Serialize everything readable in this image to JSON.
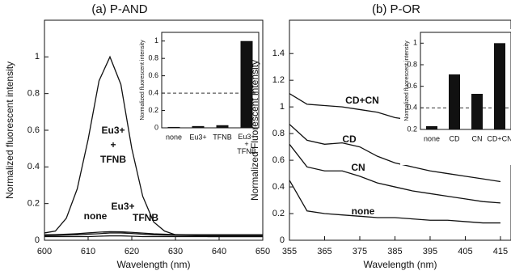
{
  "chart_data": [
    {
      "type": "line",
      "title": "(a) P-AND",
      "x_label": "Wavelength (nm)",
      "y_label": "Normalized fluorescent intensity",
      "x": [
        600,
        602.5,
        605,
        607.5,
        610,
        612.5,
        615,
        617.5,
        620,
        622.5,
        625,
        627.5,
        630,
        632.5,
        635,
        637.5,
        640,
        642.5,
        645,
        647.5,
        650
      ],
      "series": [
        {
          "name": "Eu3+ + TFNB",
          "color": "#111111",
          "values": [
            0.04,
            0.05,
            0.12,
            0.28,
            0.55,
            0.87,
            1.0,
            0.85,
            0.5,
            0.24,
            0.1,
            0.05,
            0.03,
            0.03,
            0.025,
            0.02,
            0.02,
            0.02,
            0.02,
            0.02,
            0.02
          ]
        },
        {
          "name": "none",
          "color": "#111111",
          "values": [
            0.02,
            0.02,
            0.02,
            0.02,
            0.02,
            0.022,
            0.024,
            0.024,
            0.022,
            0.02,
            0.02,
            0.02,
            0.02,
            0.02,
            0.02,
            0.02,
            0.02,
            0.02,
            0.02,
            0.02,
            0.02
          ]
        },
        {
          "name": "Eu3+",
          "color": "#111111",
          "values": [
            0.025,
            0.026,
            0.028,
            0.03,
            0.033,
            0.036,
            0.04,
            0.04,
            0.037,
            0.033,
            0.03,
            0.028,
            0.027,
            0.026,
            0.025,
            0.025,
            0.025,
            0.025,
            0.025,
            0.025,
            0.025
          ]
        },
        {
          "name": "TFNB",
          "color": "#111111",
          "values": [
            0.03,
            0.031,
            0.033,
            0.036,
            0.04,
            0.044,
            0.047,
            0.046,
            0.043,
            0.039,
            0.035,
            0.033,
            0.031,
            0.03,
            0.03,
            0.03,
            0.03,
            0.03,
            0.03,
            0.03,
            0.03
          ]
        }
      ],
      "xlim": [
        600,
        650
      ],
      "xticks": [
        600,
        610,
        620,
        630,
        640,
        650
      ],
      "ylim": [
        0,
        1.2
      ],
      "yticks": [
        0,
        0.2,
        0.4,
        0.6,
        0.8,
        1.0
      ]
    },
    {
      "type": "bar",
      "y_label": "Normalized fluorescent intensity",
      "categories": [
        "none",
        "Eu3+",
        "TFNB",
        "Eu3+ + TFNB"
      ],
      "values": [
        0.01,
        0.02,
        0.03,
        1.0
      ],
      "color": "#111111",
      "ylim": [
        0,
        1.1
      ],
      "yticks": [
        0,
        0.2,
        0.4,
        0.6,
        0.8,
        1.0
      ],
      "reference_line": 0.4
    },
    {
      "type": "line",
      "title": "(b) P-OR",
      "x_label": "Wavelength (nm)",
      "y_label": "Normalized Fluorescent intensity",
      "x": [
        355,
        360,
        365,
        370,
        375,
        380,
        385,
        390,
        395,
        400,
        405,
        410,
        415
      ],
      "series": [
        {
          "name": "CD+CN",
          "color": "#111111",
          "values": [
            1.1,
            1.02,
            1.01,
            1.0,
            0.98,
            0.96,
            0.92,
            0.9,
            0.87,
            0.85,
            0.83,
            0.81,
            0.8
          ]
        },
        {
          "name": "CD",
          "color": "#111111",
          "values": [
            0.87,
            0.75,
            0.72,
            0.73,
            0.7,
            0.63,
            0.58,
            0.55,
            0.52,
            0.5,
            0.48,
            0.46,
            0.44
          ]
        },
        {
          "name": "CN",
          "color": "#111111",
          "values": [
            0.72,
            0.55,
            0.52,
            0.52,
            0.48,
            0.43,
            0.4,
            0.37,
            0.35,
            0.33,
            0.31,
            0.29,
            0.28
          ]
        },
        {
          "name": "none",
          "color": "#111111",
          "values": [
            0.45,
            0.22,
            0.2,
            0.19,
            0.18,
            0.17,
            0.17,
            0.16,
            0.15,
            0.15,
            0.14,
            0.13,
            0.13
          ]
        }
      ],
      "xlim": [
        355,
        418
      ],
      "xticks": [
        355,
        365,
        375,
        385,
        395,
        405,
        415
      ],
      "ylim": [
        0,
        1.65
      ],
      "yticks": [
        0,
        0.2,
        0.4,
        0.6,
        0.8,
        1.0,
        1.2,
        1.4
      ]
    },
    {
      "type": "bar",
      "y_label": "Normalized fluorescent intensity",
      "categories": [
        "none",
        "CD",
        "CN",
        "CD+CN"
      ],
      "values": [
        0.23,
        0.71,
        0.53,
        1.0
      ],
      "color": "#111111",
      "ylim": [
        0.2,
        1.1
      ],
      "yticks": [
        0.2,
        0.4,
        0.6,
        0.8,
        1.0
      ],
      "reference_line": 0.4
    }
  ]
}
